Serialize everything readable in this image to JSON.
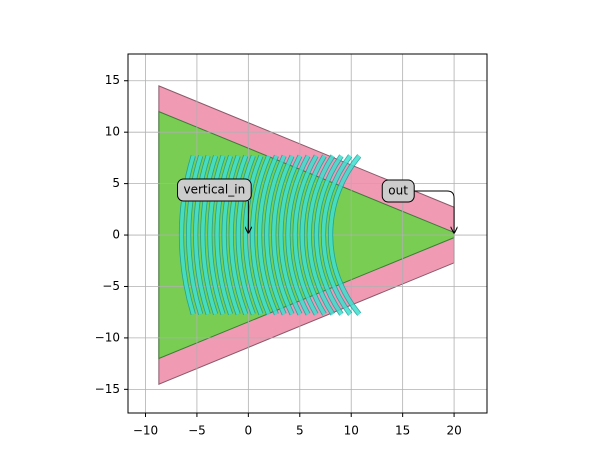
{
  "chart_data": {
    "type": "layout",
    "xlim": [
      -11.7,
      23.2
    ],
    "ylim": [
      -17.3,
      17.6
    ],
    "xticks": [
      {
        "value": -10,
        "label": "−10"
      },
      {
        "value": -5,
        "label": "−5"
      },
      0,
      5,
      10,
      15,
      20
    ],
    "yticks": [
      {
        "value": -15,
        "label": "−15"
      },
      {
        "value": -10,
        "label": "−10"
      },
      {
        "value": -5,
        "label": "−5"
      },
      0,
      5,
      10,
      15
    ],
    "grid": true,
    "polygons": [
      {
        "x": [
          -8.7,
          20,
          20,
          -8.7
        ],
        "y": [
          14.5,
          2.7,
          -2.7,
          -14.5
        ],
        "color": "#f09ab4",
        "edgecolor": "#8a5a6a"
      },
      {
        "x": [
          -8.7,
          20,
          20,
          -8.7
        ],
        "y": [
          12,
          0.25,
          -0.25,
          -12
        ],
        "color": "#78cd52",
        "edgecolor": "#3f7a3a"
      }
    ],
    "grating": {
      "center": [
        20,
        0
      ],
      "half_height": 7.7,
      "width": 0.35,
      "color": "#3ee0d0",
      "edgecolor": "#1a9a9a",
      "radii": [
        26.5,
        25.81,
        25.12,
        24.43,
        23.74,
        23.05,
        22.36,
        21.67,
        20.98,
        20.29,
        19.6,
        18.91,
        18.22,
        17.53,
        16.84,
        16.15,
        15.46,
        14.77,
        14.08,
        13.39,
        12.7,
        12.01
      ]
    },
    "annotations": [
      {
        "text": "vertical_in",
        "xy": [
          0,
          0
        ]
      },
      {
        "text": "out",
        "xy": [
          20,
          0
        ]
      }
    ]
  }
}
